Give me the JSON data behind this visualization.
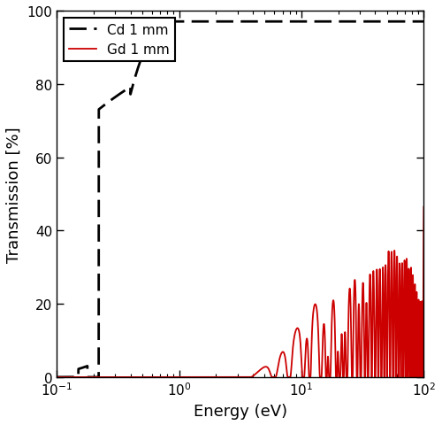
{
  "title": "",
  "xlabel": "Energy (eV)",
  "ylabel": "Transmission [%]",
  "xlim": [
    0.1,
    100
  ],
  "ylim": [
    0,
    100
  ],
  "yticks": [
    0,
    20,
    40,
    60,
    80,
    100
  ],
  "cd_label": "Cd 1 mm",
  "gd_label": "Gd 1 mm",
  "cd_color": "#000000",
  "gd_color": "#cc0000",
  "cd_linewidth": 2.0,
  "gd_linewidth": 1.3,
  "legend_loc": "upper left",
  "background_color": "#ffffff",
  "figsize": [
    5.0,
    4.81
  ],
  "dpi": 100,
  "cd_dashes": [
    7,
    3
  ],
  "legend_fontsize": 11
}
